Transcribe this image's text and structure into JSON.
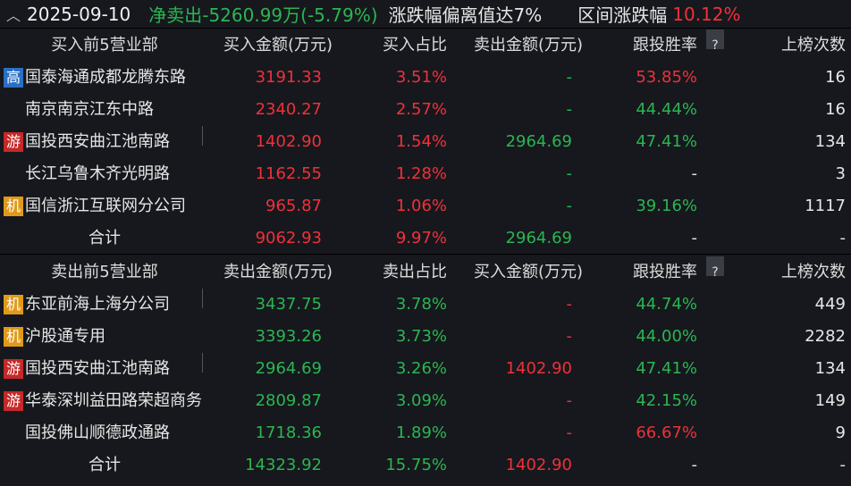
{
  "header": {
    "date": "2025-09-10",
    "net": "净卖出-5260.99万(-5.79%)",
    "deviation": "涨跌幅偏离值达7%",
    "range_label": "区间涨跌幅",
    "range_value": "10.12%"
  },
  "buy": {
    "headers": [
      "买入前5营业部",
      "买入金额(万元)",
      "买入占比",
      "卖出金额(万元)",
      "跟投胜率",
      "?",
      "上榜次数"
    ],
    "rows": [
      {
        "tag": "高",
        "tag_type": "gao",
        "name": "国泰海通成都龙腾东路",
        "amount": "3191.33",
        "ratio": "3.51%",
        "other": "-",
        "win": "53.85%",
        "win_color": "red",
        "count": "16"
      },
      {
        "tag": "",
        "tag_type": "",
        "name": "南京南京江东中路",
        "amount": "2340.27",
        "ratio": "2.57%",
        "other": "-",
        "win": "44.44%",
        "win_color": "green",
        "count": "16"
      },
      {
        "tag": "游",
        "tag_type": "you",
        "name": "国投西安曲江池南路",
        "amount": "1402.90",
        "ratio": "1.54%",
        "other": "2964.69",
        "win": "47.41%",
        "win_color": "green",
        "count": "134",
        "bar": true
      },
      {
        "tag": "",
        "tag_type": "",
        "name": "长江乌鲁木齐光明路",
        "amount": "1162.55",
        "ratio": "1.28%",
        "other": "-",
        "win": "-",
        "win_color": "white",
        "count": "3"
      },
      {
        "tag": "机",
        "tag_type": "ji",
        "name": "国信浙江互联网分公司",
        "amount": "965.87",
        "ratio": "1.06%",
        "other": "-",
        "win": "39.16%",
        "win_color": "green",
        "count": "1117"
      }
    ],
    "total": {
      "label": "合计",
      "amount": "9062.93",
      "ratio": "9.97%",
      "other": "2964.69",
      "win": "-",
      "count": "-"
    }
  },
  "sell": {
    "headers": [
      "卖出前5营业部",
      "卖出金额(万元)",
      "卖出占比",
      "买入金额(万元)",
      "跟投胜率",
      "?",
      "上榜次数"
    ],
    "rows": [
      {
        "tag": "机",
        "tag_type": "ji",
        "name": "东亚前海上海分公司",
        "amount": "3437.75",
        "ratio": "3.78%",
        "other": "-",
        "win": "44.74%",
        "win_color": "green",
        "count": "449",
        "bar": true
      },
      {
        "tag": "机",
        "tag_type": "ji",
        "name": "沪股通专用",
        "amount": "3393.26",
        "ratio": "3.73%",
        "other": "-",
        "win": "44.00%",
        "win_color": "green",
        "count": "2282"
      },
      {
        "tag": "游",
        "tag_type": "you",
        "name": "国投西安曲江池南路",
        "amount": "2964.69",
        "ratio": "3.26%",
        "other": "1402.90",
        "win": "47.41%",
        "win_color": "green",
        "count": "134",
        "bar": true
      },
      {
        "tag": "游",
        "tag_type": "you",
        "name": "华泰深圳益田路荣超商务",
        "amount": "2809.87",
        "ratio": "3.09%",
        "other": "-",
        "win": "42.15%",
        "win_color": "green",
        "count": "149"
      },
      {
        "tag": "",
        "tag_type": "",
        "name": "国投佛山顺德政通路",
        "amount": "1718.36",
        "ratio": "1.89%",
        "other": "-",
        "win": "66.67%",
        "win_color": "red",
        "count": "9"
      }
    ],
    "total": {
      "label": "合计",
      "amount": "14323.92",
      "ratio": "15.75%",
      "other": "1402.90",
      "win": "-",
      "count": "-"
    }
  },
  "colors": {
    "red": "#f0303a",
    "green": "#2bb552",
    "white": "#e6e6e6",
    "bg": "#16181d"
  }
}
